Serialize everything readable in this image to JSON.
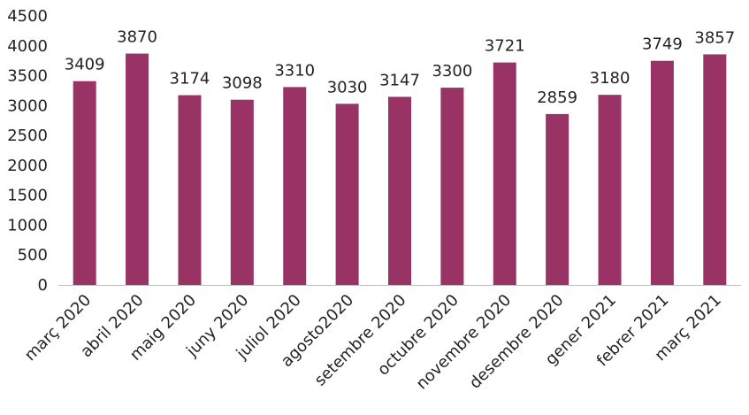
{
  "chart_data": {
    "type": "bar",
    "title": "",
    "xlabel": "",
    "ylabel": "",
    "categories": [
      "març 2020",
      "abril 2020",
      "maig 2020",
      "juny 2020",
      "juliol 2020",
      "agosto2020",
      "setembre 2020",
      "octubre 2020",
      "novembre 2020",
      "desembre 2020",
      "gener 2021",
      "febrer 2021",
      "març 2021"
    ],
    "values": [
      3409,
      3870,
      3174,
      3098,
      3310,
      3030,
      3147,
      3300,
      3721,
      2859,
      3180,
      3749,
      3857
    ],
    "ylim": [
      0,
      4500
    ],
    "yticks": [
      0,
      500,
      1000,
      1500,
      2000,
      2500,
      3000,
      3500,
      4000,
      4500
    ],
    "grid": false,
    "legend": "none",
    "bar_color": "#993366",
    "axis_color": "#bfbfbf"
  }
}
